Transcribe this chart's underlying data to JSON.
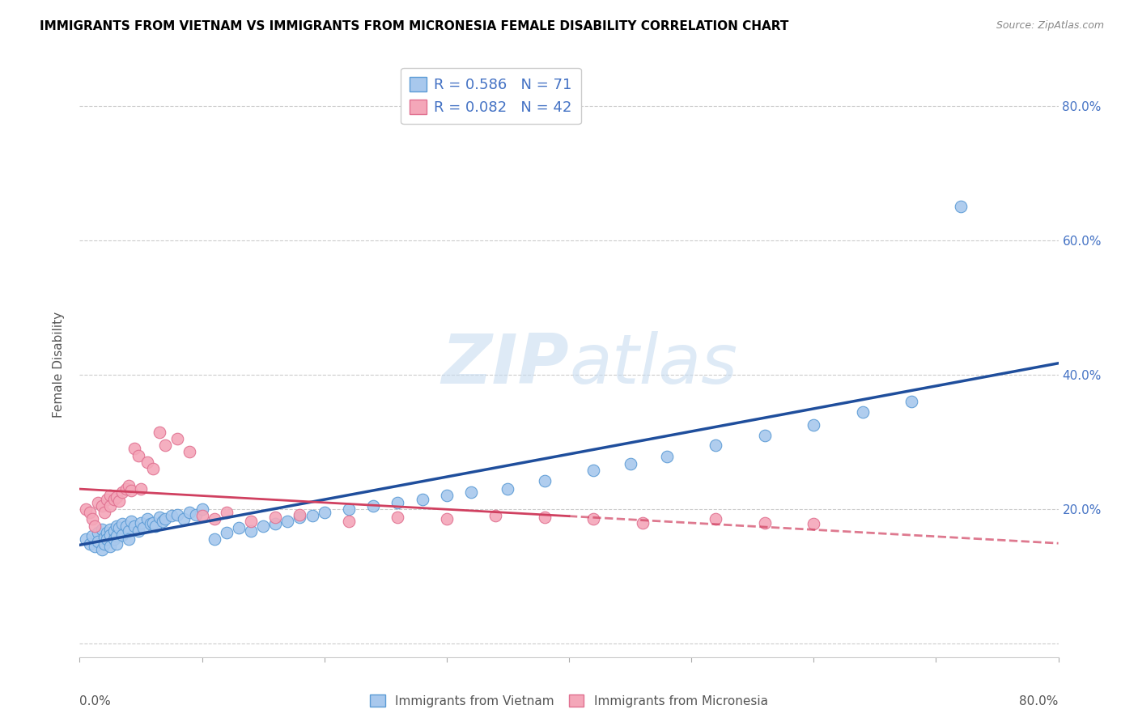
{
  "title": "IMMIGRANTS FROM VIETNAM VS IMMIGRANTS FROM MICRONESIA FEMALE DISABILITY CORRELATION CHART",
  "source": "Source: ZipAtlas.com",
  "ylabel": "Female Disability",
  "xlim": [
    0.0,
    0.8
  ],
  "ylim": [
    -0.02,
    0.85
  ],
  "vietnam_color": "#A8C8ED",
  "vietnam_edge_color": "#5B9BD5",
  "micronesia_color": "#F4A7B9",
  "micronesia_edge_color": "#E07090",
  "vietnam_line_color": "#1F4E9C",
  "micronesia_line_color": "#D04060",
  "legend_text_color": "#4472C4",
  "watermark": "ZIPatlas",
  "vietnam_R": 0.586,
  "vietnam_N": 71,
  "micronesia_R": 0.082,
  "micronesia_N": 42,
  "vietnam_x": [
    0.005,
    0.008,
    0.01,
    0.012,
    0.015,
    0.015,
    0.018,
    0.018,
    0.02,
    0.02,
    0.022,
    0.022,
    0.025,
    0.025,
    0.025,
    0.028,
    0.028,
    0.03,
    0.03,
    0.03,
    0.032,
    0.035,
    0.035,
    0.038,
    0.04,
    0.04,
    0.042,
    0.045,
    0.048,
    0.05,
    0.052,
    0.055,
    0.058,
    0.06,
    0.062,
    0.065,
    0.068,
    0.07,
    0.075,
    0.08,
    0.085,
    0.09,
    0.095,
    0.1,
    0.11,
    0.12,
    0.13,
    0.14,
    0.15,
    0.16,
    0.17,
    0.18,
    0.19,
    0.2,
    0.22,
    0.24,
    0.26,
    0.28,
    0.3,
    0.32,
    0.35,
    0.38,
    0.42,
    0.45,
    0.48,
    0.52,
    0.56,
    0.6,
    0.64,
    0.68,
    0.72
  ],
  "vietnam_y": [
    0.155,
    0.148,
    0.16,
    0.145,
    0.165,
    0.152,
    0.17,
    0.14,
    0.158,
    0.148,
    0.165,
    0.155,
    0.17,
    0.162,
    0.145,
    0.168,
    0.155,
    0.175,
    0.16,
    0.148,
    0.172,
    0.178,
    0.162,
    0.175,
    0.168,
    0.155,
    0.182,
    0.175,
    0.168,
    0.18,
    0.172,
    0.185,
    0.178,
    0.18,
    0.175,
    0.188,
    0.182,
    0.185,
    0.19,
    0.192,
    0.185,
    0.195,
    0.192,
    0.2,
    0.155,
    0.165,
    0.172,
    0.168,
    0.175,
    0.178,
    0.182,
    0.188,
    0.19,
    0.195,
    0.2,
    0.205,
    0.21,
    0.215,
    0.22,
    0.225,
    0.23,
    0.242,
    0.258,
    0.268,
    0.278,
    0.295,
    0.31,
    0.325,
    0.345,
    0.36,
    0.65
  ],
  "micronesia_x": [
    0.005,
    0.008,
    0.01,
    0.012,
    0.015,
    0.018,
    0.02,
    0.022,
    0.025,
    0.025,
    0.028,
    0.03,
    0.032,
    0.035,
    0.038,
    0.04,
    0.042,
    0.045,
    0.048,
    0.05,
    0.055,
    0.06,
    0.065,
    0.07,
    0.08,
    0.09,
    0.1,
    0.11,
    0.12,
    0.14,
    0.16,
    0.18,
    0.22,
    0.26,
    0.3,
    0.34,
    0.38,
    0.42,
    0.46,
    0.52,
    0.56,
    0.6
  ],
  "micronesia_y": [
    0.2,
    0.195,
    0.185,
    0.175,
    0.21,
    0.205,
    0.195,
    0.215,
    0.22,
    0.205,
    0.215,
    0.218,
    0.212,
    0.225,
    0.23,
    0.235,
    0.228,
    0.29,
    0.28,
    0.23,
    0.27,
    0.26,
    0.315,
    0.295,
    0.305,
    0.285,
    0.19,
    0.185,
    0.195,
    0.182,
    0.188,
    0.192,
    0.182,
    0.188,
    0.185,
    0.19,
    0.188,
    0.185,
    0.18,
    0.185,
    0.18,
    0.178
  ]
}
